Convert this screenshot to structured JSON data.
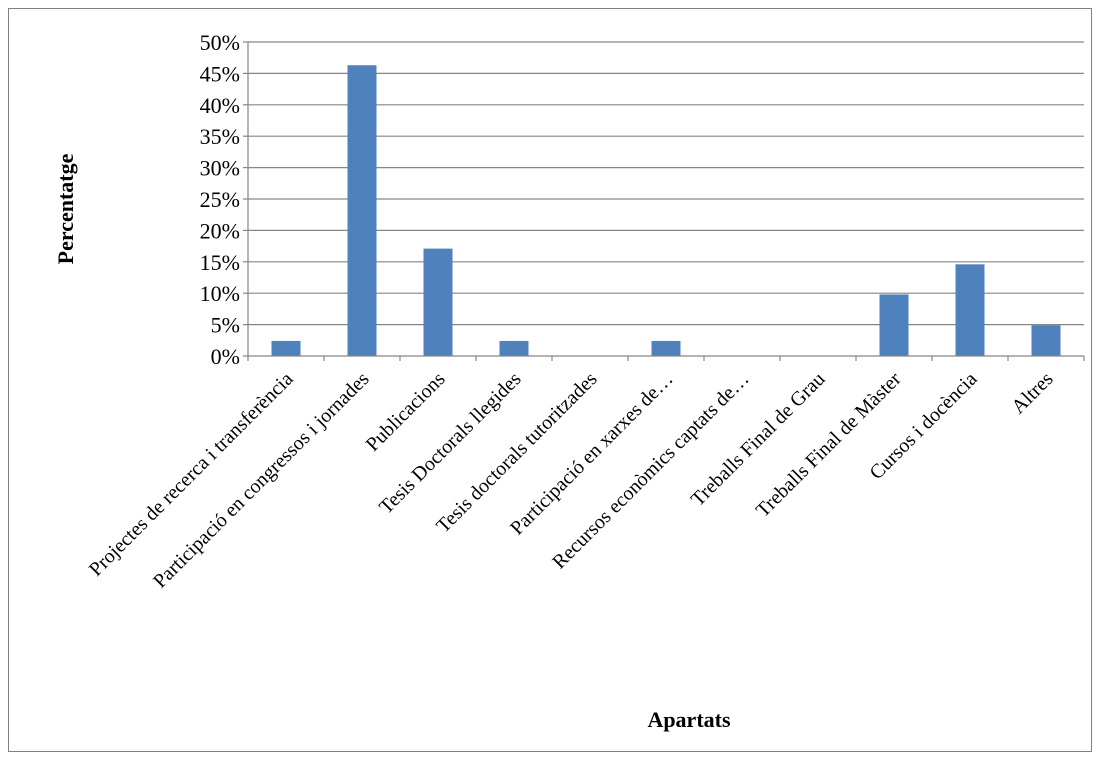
{
  "chart_data": {
    "type": "bar",
    "xlabel": "Apartats",
    "ylabel": "Percentatge",
    "ylim": [
      0,
      50
    ],
    "ytick_step": 5,
    "ytick_suffix": "%",
    "grid": true,
    "legend": "none",
    "bar_color": "#4f81bd",
    "categories": [
      "Projectes de recerca i transferència",
      "Participació en congressos i jornades",
      "Publicacions",
      "Tesis Doctorals llegides",
      "Tesis doctorals tutoritzades",
      "Participació en xarxes de…",
      "Recursos econòmics captats de…",
      "Treballs Final de Grau",
      "Treballs Final de Màster",
      "Cursos i docència",
      "Altres"
    ],
    "values": [
      2.4,
      46.3,
      17.1,
      2.4,
      0,
      2.4,
      0,
      0,
      9.8,
      14.6,
      4.9
    ]
  }
}
